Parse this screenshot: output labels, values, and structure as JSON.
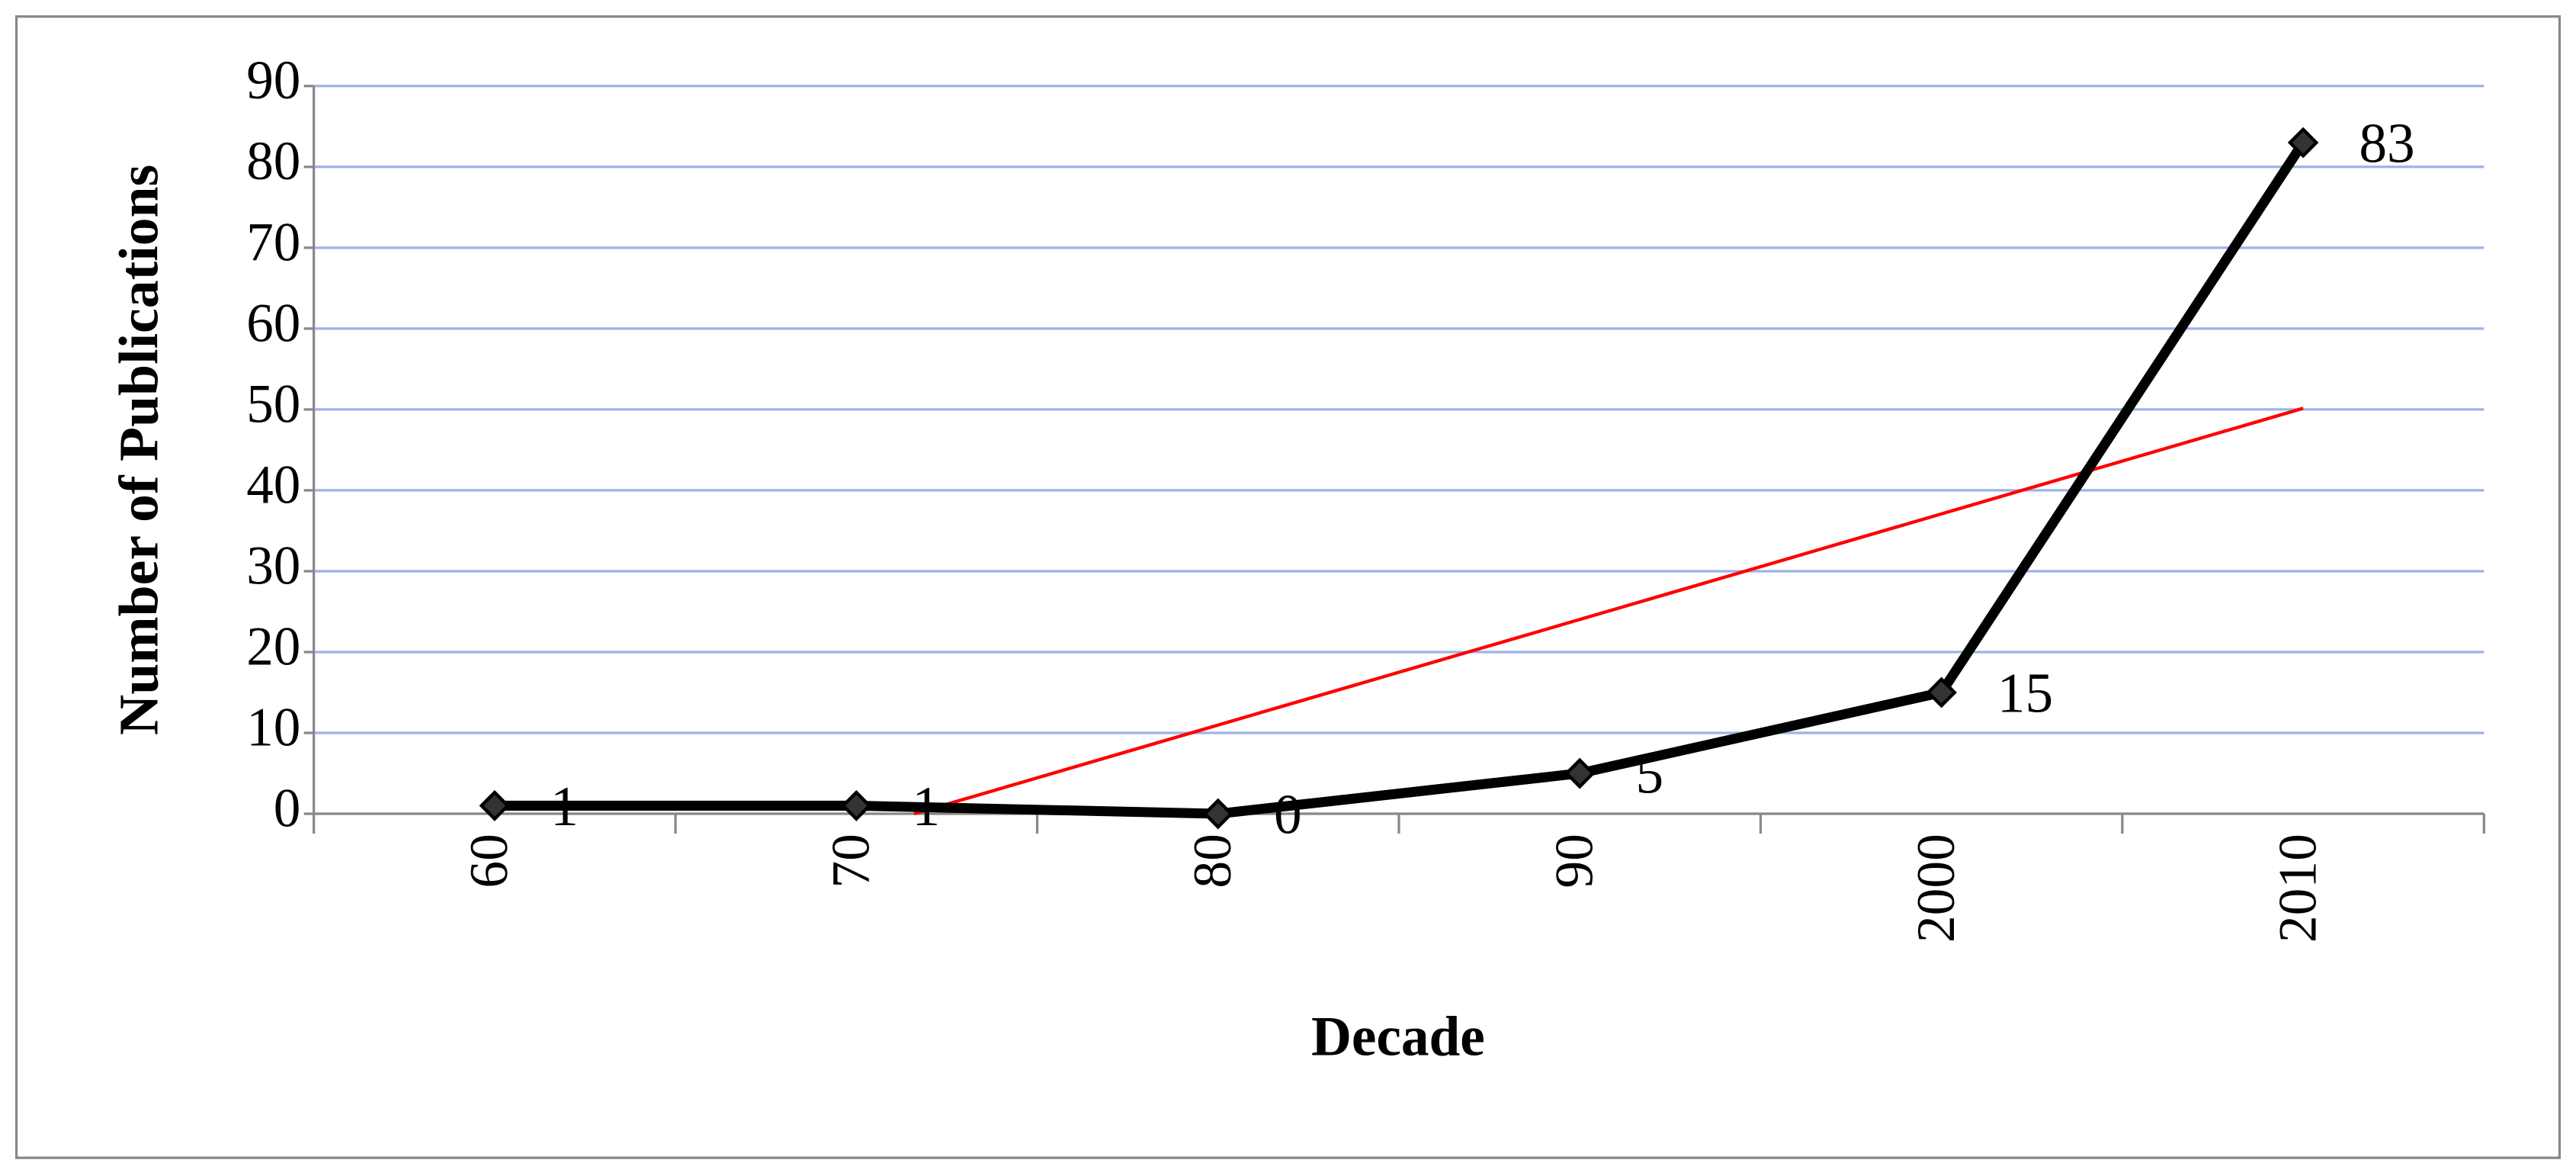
{
  "chart_data": {
    "type": "line",
    "x_label": "Decade",
    "y_label": "Number of Publications",
    "categories": [
      "60",
      "70",
      "80",
      "90",
      "2000",
      "2010"
    ],
    "values": [
      1,
      1,
      0,
      5,
      15,
      83
    ],
    "color": "#000000",
    "marker_color": "#333333",
    "ylim": [
      0,
      90
    ],
    "yticks": [
      0,
      10,
      20,
      30,
      40,
      50,
      60,
      70,
      80,
      90
    ],
    "grid": true,
    "grid_color": "#9db3e6",
    "trendline": true,
    "trendline_color": "#ff0000"
  }
}
